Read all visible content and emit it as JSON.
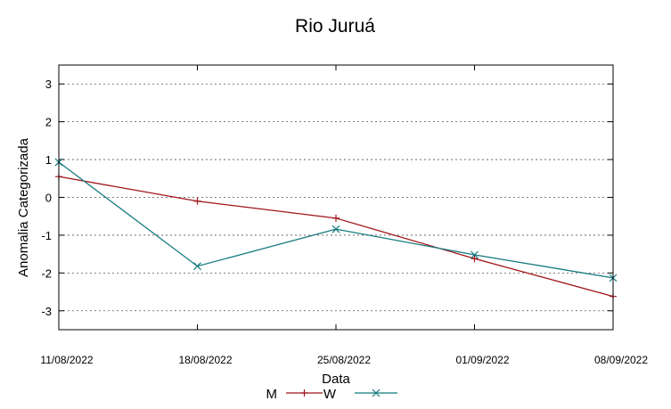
{
  "chart_data": {
    "type": "line",
    "title": "Rio Juruá",
    "xlabel": "Data",
    "ylabel": "Anomalia Categorizada",
    "categories": [
      "11/08/2022",
      "18/08/2022",
      "25/08/2022",
      "01/09/2022",
      "08/09/2022"
    ],
    "yticks": [
      "3",
      "2",
      "1",
      "0",
      "-1",
      "-2",
      "-3"
    ],
    "ylim": [
      -3.5,
      3.5
    ],
    "grid": "horizontal dotted",
    "legend_position": "bottom",
    "series": [
      {
        "name": "M",
        "color": "#a0151a",
        "marker": "plus",
        "values": [
          0.55,
          -0.1,
          -0.55,
          -1.62,
          -2.62
        ]
      },
      {
        "name": "W",
        "color": "#157a7e",
        "marker": "x",
        "values": [
          0.93,
          -1.82,
          -0.84,
          -1.52,
          -2.13
        ]
      }
    ]
  }
}
